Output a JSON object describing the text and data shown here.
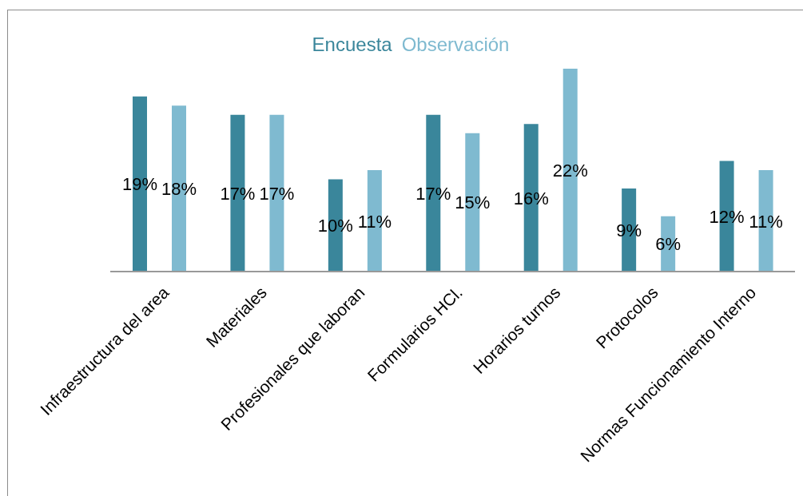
{
  "chart_data": {
    "type": "bar",
    "categories": [
      "Infraestructura del area",
      "Materiales",
      "Profesionales que laboran",
      "Formularios HCl.",
      "Horarios turnos",
      "Protocolos",
      "Normas Funcionamiento Interno"
    ],
    "series": [
      {
        "name": "Encuesta",
        "color": "#3a869b",
        "values": [
          19,
          17,
          10,
          17,
          16,
          9,
          12
        ],
        "value_labels": [
          "19%",
          "17%",
          "10%",
          "17%",
          "16%",
          "9%",
          "12%"
        ]
      },
      {
        "name": "Observación",
        "color": "#7fbad0",
        "values": [
          18,
          17,
          11,
          15,
          22,
          6,
          11
        ],
        "value_labels": [
          "18%",
          "17%",
          "11%",
          "15%",
          "22%",
          "6%",
          "11%"
        ]
      }
    ],
    "legend": "top"
  }
}
